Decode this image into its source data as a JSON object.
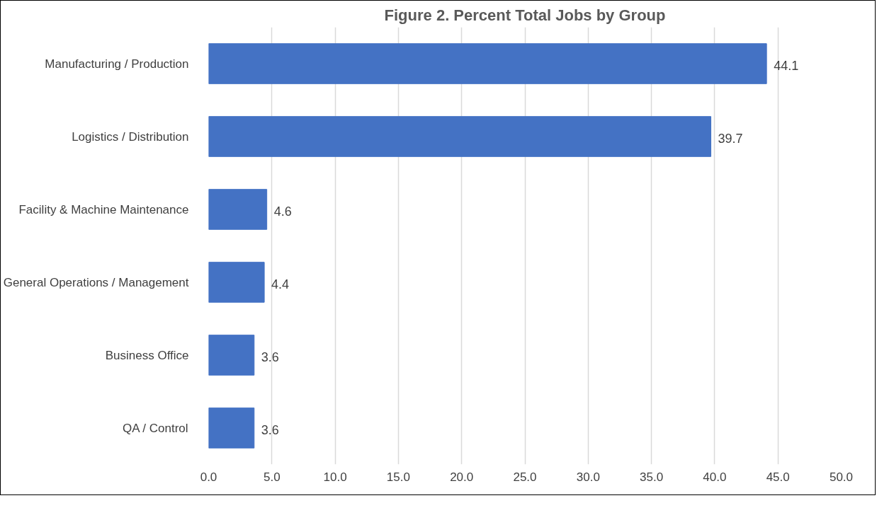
{
  "chart_data": {
    "type": "bar",
    "orientation": "horizontal",
    "title": "Figure 2. Percent Total Jobs by Group",
    "categories": [
      "Manufacturing / Production",
      "Logistics / Distribution",
      "Facility & Machine Maintenance",
      "General Operations / Management",
      "Business Office",
      "QA / Control"
    ],
    "values": [
      44.1,
      39.7,
      4.6,
      4.4,
      3.6,
      3.6
    ],
    "color": "#4472c4",
    "xlim": [
      0,
      50
    ],
    "xticks": [
      {
        "value": 0,
        "label": "0.0"
      },
      {
        "value": 5,
        "label": "5.0"
      },
      {
        "value": 10,
        "label": "10.0"
      },
      {
        "value": 15,
        "label": "15.0"
      },
      {
        "value": 20,
        "label": "20.0"
      },
      {
        "value": 25,
        "label": "25.0"
      },
      {
        "value": 30,
        "label": "30.0"
      },
      {
        "value": 35,
        "label": "35.0"
      },
      {
        "value": 40,
        "label": "40.0"
      },
      {
        "value": 45,
        "label": "45.0"
      },
      {
        "value": 50,
        "label": "50.0"
      }
    ],
    "grid": "x",
    "data_labels": true
  }
}
